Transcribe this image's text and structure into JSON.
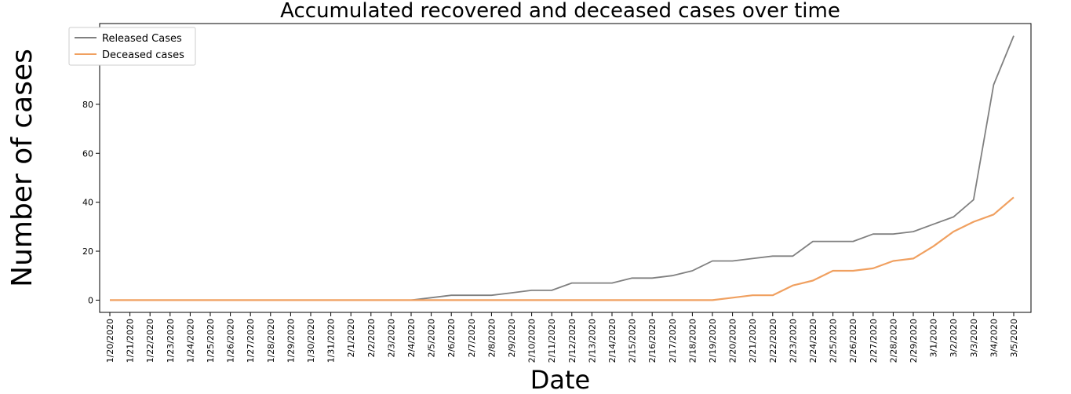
{
  "chart_data": {
    "type": "line",
    "title": "Accumulated recovered and deceased cases over time",
    "xlabel": "Date",
    "ylabel": "Number of cases",
    "x": [
      "1/20/2020",
      "1/21/2020",
      "1/22/2020",
      "1/23/2020",
      "1/24/2020",
      "1/25/2020",
      "1/26/2020",
      "1/27/2020",
      "1/28/2020",
      "1/29/2020",
      "1/30/2020",
      "1/31/2020",
      "2/1/2020",
      "2/2/2020",
      "2/3/2020",
      "2/4/2020",
      "2/5/2020",
      "2/6/2020",
      "2/7/2020",
      "2/8/2020",
      "2/9/2020",
      "2/10/2020",
      "2/11/2020",
      "2/12/2020",
      "2/13/2020",
      "2/14/2020",
      "2/15/2020",
      "2/16/2020",
      "2/17/2020",
      "2/18/2020",
      "2/19/2020",
      "2/20/2020",
      "2/21/2020",
      "2/22/2020",
      "2/23/2020",
      "2/24/2020",
      "2/25/2020",
      "2/26/2020",
      "2/27/2020",
      "2/28/2020",
      "2/29/2020",
      "3/1/2020",
      "3/2/2020",
      "3/3/2020",
      "3/4/2020",
      "3/5/2020"
    ],
    "ylim": [
      -5,
      113
    ],
    "yticks": [
      0,
      20,
      40,
      60,
      80,
      100
    ],
    "legend_position": "top-left",
    "grid": false,
    "series": [
      {
        "name": "Released Cases",
        "color": "#808080",
        "values": [
          0,
          0,
          0,
          0,
          0,
          0,
          0,
          0,
          0,
          0,
          0,
          0,
          0,
          0,
          0,
          0,
          1,
          2,
          2,
          2,
          3,
          4,
          4,
          7,
          7,
          7,
          9,
          9,
          10,
          12,
          16,
          16,
          17,
          18,
          18,
          24,
          24,
          24,
          27,
          27,
          28,
          31,
          34,
          41,
          88,
          108
        ]
      },
      {
        "name": "Deceased cases",
        "color": "#f0a060",
        "values": [
          0,
          0,
          0,
          0,
          0,
          0,
          0,
          0,
          0,
          0,
          0,
          0,
          0,
          0,
          0,
          0,
          0,
          0,
          0,
          0,
          0,
          0,
          0,
          0,
          0,
          0,
          0,
          0,
          0,
          0,
          0,
          1,
          2,
          2,
          6,
          8,
          12,
          12,
          13,
          16,
          17,
          22,
          28,
          32,
          35,
          42
        ]
      }
    ]
  }
}
